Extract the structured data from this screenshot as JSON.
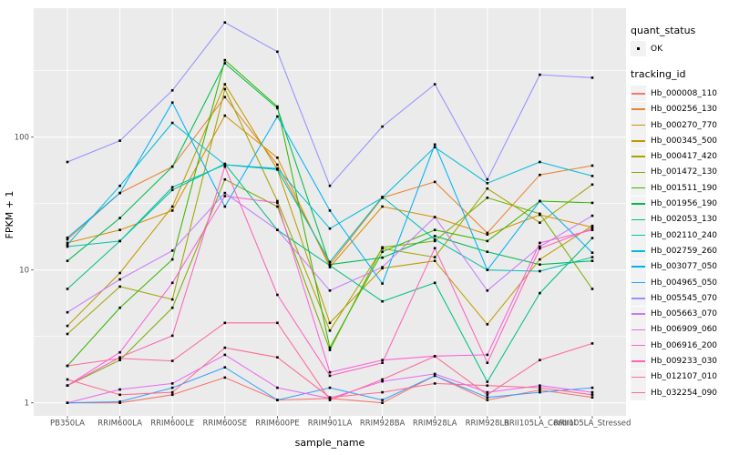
{
  "figure": {
    "y_axis": {
      "title": "FPKM + 1",
      "scale": "log10",
      "tick_labels": [
        "1",
        "10",
        "100"
      ],
      "tick_values": [
        1,
        10,
        100
      ],
      "minor_tick_values": [
        3.1623,
        31.623,
        316.23
      ]
    },
    "x_axis": {
      "title": "sample_name"
    },
    "colors": {
      "panel_bg": "#EBEBEB",
      "grid": "#FFFFFF",
      "tick_label": "#4D4D4D",
      "point": "#000000",
      "legend_key_bg": "#F2F2F2"
    }
  },
  "legend": {
    "quant_status_title": "quant_status",
    "quant_status_items": [
      {
        "label": "OK",
        "marker": "black-square-point"
      }
    ],
    "tracking_id_title": "tracking_id"
  },
  "chart_data": {
    "type": "line",
    "title": "",
    "xlabel": "sample_name",
    "ylabel": "FPKM + 1",
    "yscale": "log10",
    "ylim": [
      1,
      750
    ],
    "grid": true,
    "legend_position": "right",
    "point_marker": "small-black-square",
    "categories": [
      "PB350LA",
      "RRIM600LA",
      "RRIM600LE",
      "RRIM600SE",
      "RRIM600PE",
      "RRIM901LA",
      "RRIM928BA",
      "RRIM928LA",
      "RRIM928LB",
      "RRII105LA_Control",
      "RRII105LA_Stressed"
    ],
    "series": [
      {
        "name": "Hb_000008_110",
        "color": "#F8766D",
        "values": [
          1.0,
          1.0,
          1.15,
          1.55,
          1.05,
          1.08,
          1.0,
          1.6,
          1.05,
          1.25,
          1.1
        ]
      },
      {
        "name": "Hb_000256_130",
        "color": "#EA8331",
        "values": [
          17,
          38,
          60,
          200,
          62,
          11,
          35,
          46,
          19,
          52,
          61
        ]
      },
      {
        "name": "Hb_000270_770",
        "color": "#D89000",
        "values": [
          16,
          20,
          28,
          145,
          70,
          10.5,
          30,
          25,
          18.5,
          26,
          21
        ]
      },
      {
        "name": "Hb_000345_500",
        "color": "#C09B00",
        "values": [
          3.8,
          9.5,
          30,
          250,
          57,
          4.0,
          10.3,
          11.7,
          3.9,
          12,
          21.5
        ]
      },
      {
        "name": "Hb_000417_420",
        "color": "#A3A500",
        "values": [
          3.3,
          7.5,
          6.0,
          230,
          33,
          3.5,
          14.5,
          12.5,
          41,
          22.7,
          44
        ]
      },
      {
        "name": "Hb_001472_130",
        "color": "#7CAE00",
        "values": [
          1.35,
          2.1,
          5.2,
          48,
          30,
          2.5,
          14.8,
          16.5,
          35,
          26.5,
          7.2
        ]
      },
      {
        "name": "Hb_001511_190",
        "color": "#39B600",
        "values": [
          1.9,
          5.2,
          12,
          380,
          170,
          2.6,
          13.7,
          20,
          16.5,
          33,
          32
        ]
      },
      {
        "name": "Hb_001956_190",
        "color": "#00BB4E",
        "values": [
          11.7,
          24.6,
          60,
          360,
          165,
          11,
          12.4,
          18,
          13.7,
          11,
          11.7
        ]
      },
      {
        "name": "Hb_002053_130",
        "color": "#00C087",
        "values": [
          7.2,
          16.5,
          40,
          63,
          20,
          10.8,
          5.8,
          8.0,
          1.44,
          6.7,
          17.4
        ]
      },
      {
        "name": "Hb_002110_240",
        "color": "#00C0AF",
        "values": [
          15,
          16.5,
          42,
          62,
          57,
          11.5,
          35.5,
          17,
          10,
          9.8,
          12.5
        ]
      },
      {
        "name": "Hb_002759_260",
        "color": "#00BCD8",
        "values": [
          15.5,
          43,
          128,
          62,
          58,
          20.5,
          35,
          84,
          45,
          65,
          51
        ]
      },
      {
        "name": "Hb_003077_050",
        "color": "#00B0F6",
        "values": [
          17.5,
          38,
          182,
          30,
          143,
          28,
          7.9,
          88,
          10,
          33,
          13.5
        ]
      },
      {
        "name": "Hb_004965_050",
        "color": "#35A2FF",
        "values": [
          1.0,
          1.02,
          1.3,
          1.85,
          1.05,
          1.3,
          1.05,
          1.6,
          1.1,
          1.2,
          1.3
        ]
      },
      {
        "name": "Hb_005545_070",
        "color": "#9590FF",
        "values": [
          65,
          94,
          225,
          730,
          440,
          43,
          120,
          250,
          48,
          295,
          280
        ]
      },
      {
        "name": "Hb_005663_070",
        "color": "#C77CFF",
        "values": [
          4.8,
          8.5,
          14,
          38,
          20,
          7.0,
          10.5,
          25,
          7.0,
          15,
          25.6
        ]
      },
      {
        "name": "Hb_006909_060",
        "color": "#E76BF3",
        "values": [
          1.0,
          1.26,
          1.4,
          2.3,
          1.3,
          1.08,
          1.45,
          1.65,
          1.2,
          1.35,
          1.2
        ]
      },
      {
        "name": "Hb_006916_200",
        "color": "#FA62DB",
        "values": [
          1.35,
          2.4,
          8.0,
          36,
          32,
          1.7,
          2.1,
          2.25,
          2.3,
          16,
          20
        ]
      },
      {
        "name": "Hb_009233_030",
        "color": "#FF62BC",
        "values": [
          1.35,
          2.2,
          3.2,
          60,
          6.5,
          1.6,
          2.0,
          14.6,
          2.0,
          14.5,
          20.5
        ]
      },
      {
        "name": "Hb_012107_010",
        "color": "#FF6A98",
        "values": [
          1.9,
          2.16,
          2.07,
          4.0,
          4.0,
          1.05,
          1.5,
          2.24,
          1.15,
          2.1,
          2.8
        ]
      },
      {
        "name": "Hb_032254_090",
        "color": "#FD6C90",
        "values": [
          1.5,
          1.15,
          1.2,
          2.6,
          2.2,
          1.1,
          1.2,
          1.4,
          1.35,
          1.3,
          1.15
        ]
      }
    ]
  }
}
